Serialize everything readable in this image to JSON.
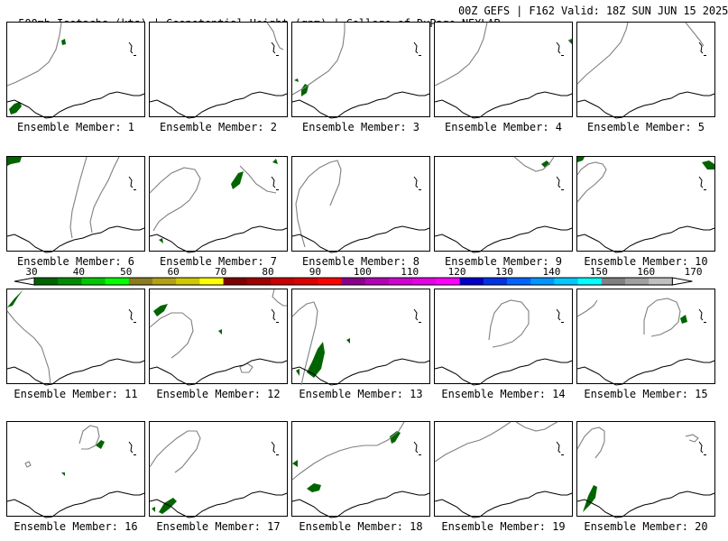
{
  "title": {
    "left": "500mb Isotachs (kts) | Geopotential Height (gpm) | College of DuPage NEXLAB",
    "right": "00Z GEFS | F162 Valid: 18Z SUN JUN 15 2025"
  },
  "member_prefix": "Ensemble Member:",
  "members": [
    {
      "id": "1",
      "label": "Ensemble Member: 1"
    },
    {
      "id": "2",
      "label": "Ensemble Member: 2"
    },
    {
      "id": "3",
      "label": "Ensemble Member: 3"
    },
    {
      "id": "4",
      "label": "Ensemble Member: 4"
    },
    {
      "id": "5",
      "label": "Ensemble Member: 5"
    },
    {
      "id": "6",
      "label": "Ensemble Member: 6"
    },
    {
      "id": "7",
      "label": "Ensemble Member: 7"
    },
    {
      "id": "8",
      "label": "Ensemble Member: 8"
    },
    {
      "id": "9",
      "label": "Ensemble Member: 9"
    },
    {
      "id": "10",
      "label": "Ensemble Member: 10"
    },
    {
      "id": "11",
      "label": "Ensemble Member: 11"
    },
    {
      "id": "12",
      "label": "Ensemble Member: 12"
    },
    {
      "id": "13",
      "label": "Ensemble Member: 13"
    },
    {
      "id": "14",
      "label": "Ensemble Member: 14"
    },
    {
      "id": "15",
      "label": "Ensemble Member: 15"
    },
    {
      "id": "16",
      "label": "Ensemble Member: 16"
    },
    {
      "id": "17",
      "label": "Ensemble Member: 17"
    },
    {
      "id": "18",
      "label": "Ensemble Member: 18"
    },
    {
      "id": "19",
      "label": "Ensemble Member: 19"
    },
    {
      "id": "20",
      "label": "Ensemble Member: 20"
    }
  ],
  "colorbar": {
    "ticks": [
      "30",
      "40",
      "50",
      "60",
      "70",
      "80",
      "90",
      "100",
      "110",
      "120",
      "130",
      "140",
      "150",
      "160",
      "170"
    ],
    "colors": [
      "#006400",
      "#008c00",
      "#00c800",
      "#00ff00",
      "#8b7d1e",
      "#b4a014",
      "#d2c800",
      "#ffff00",
      "#800000",
      "#a00000",
      "#c80000",
      "#dc0000",
      "#ff0000",
      "#8b008b",
      "#b400b4",
      "#d200d2",
      "#e600e6",
      "#ff00ff",
      "#0000c8",
      "#0032e6",
      "#0064ff",
      "#0096ff",
      "#00c8ff",
      "#00ffff",
      "#808080",
      "#a0a0a0",
      "#c0c0c0"
    ]
  },
  "colors": {
    "coast": "#000000",
    "height_contour": "#808080",
    "isotach_fill": "#006400"
  }
}
